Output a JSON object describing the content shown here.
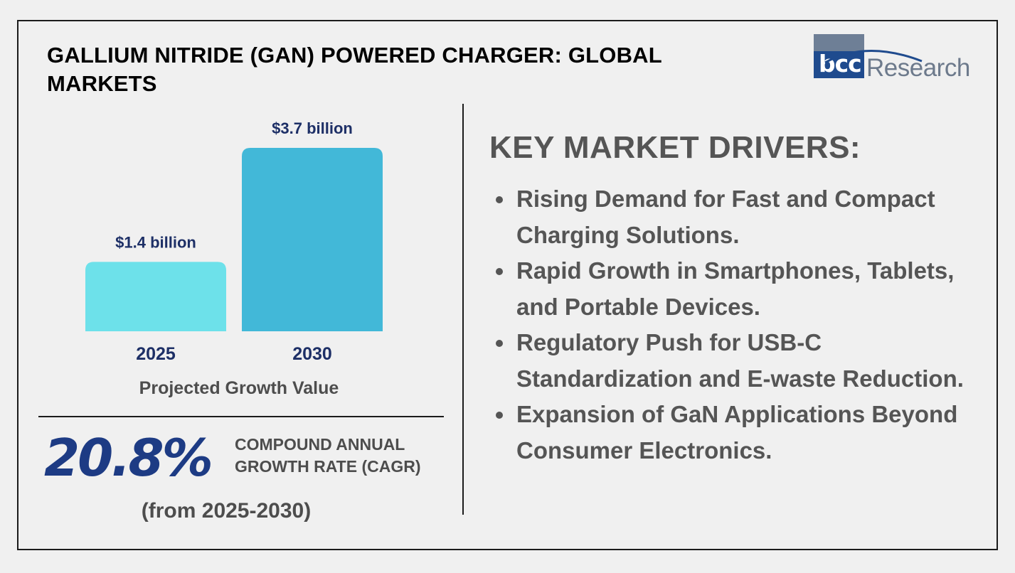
{
  "header": {
    "title": "GALLIUM NITRIDE (GAN) POWERED CHARGER: GLOBAL MARKETS",
    "logo_icon": "bcc-research-logo",
    "logo_bcc": "bcc",
    "logo_research": "Research"
  },
  "chart_data": {
    "type": "bar",
    "categories": [
      "2025",
      "2030"
    ],
    "values": [
      1.4,
      3.7
    ],
    "value_labels": [
      "$1.4 billion",
      "$3.7 billion"
    ],
    "unit": "$ billion",
    "title": "",
    "xlabel": "Projected Growth Value",
    "ylabel": "",
    "ylim": [
      0,
      3.7
    ],
    "colors": [
      "#6de1ea",
      "#42b8d8"
    ],
    "label_color": "#1d2f66",
    "grid": false
  },
  "cagr": {
    "value": "20.8%",
    "label_line1": "COMPOUND ANNUAL",
    "label_line2": "GROWTH RATE (CAGR)",
    "period": "(from 2025-2030)"
  },
  "drivers": {
    "heading": "KEY MARKET DRIVERS:",
    "items": [
      "Rising Demand for Fast and Compact Charging Solutions.",
      "Rapid Growth in Smartphones, Tablets, and Portable Devices.",
      "Regulatory Push for USB-C Standardization and E-waste Reduction.",
      "Expansion of GaN Applications Beyond Consumer Electronics."
    ]
  }
}
